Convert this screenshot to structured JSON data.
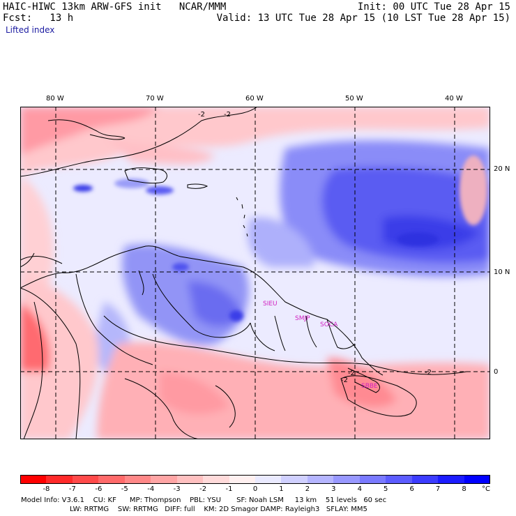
{
  "header": {
    "line1_left": "HAIC-HIWC 13km ARW-GFS init   NCAR/MMM",
    "line1_right": "Init: 00 UTC Tue 28 Apr 15",
    "line2_left": "Fcst:   13 h",
    "line2_right": "Valid: 13 UTC Tue 28 Apr 15 (10 LST Tue 28 Apr 15)",
    "field": "Lifted index"
  },
  "map": {
    "lon_ticks": [
      "80 W",
      "70 W",
      "60 W",
      "50 W",
      "40 W"
    ],
    "lat_ticks": [
      "20 N",
      "10 N",
      "0"
    ],
    "contour_labels": [
      "-2",
      "-2",
      "-2",
      "-2",
      "-2"
    ],
    "sites": [
      "SIEU",
      "SMJP",
      "SOCA",
      "SBBE"
    ]
  },
  "legend": {
    "labels": [
      "-8",
      "-7",
      "-6",
      "-5",
      "-4",
      "-3",
      "-2",
      "-1",
      "0",
      "1",
      "2",
      "3",
      "4",
      "5",
      "6",
      "7",
      "8"
    ],
    "unit": "°C",
    "colors": [
      "#ff0000",
      "#ff2a2a",
      "#ff4a4a",
      "#ff6a6a",
      "#ff8888",
      "#ffa5a5",
      "#ffc0c0",
      "#ffdada",
      "#fff0f0",
      "#eaeaff",
      "#d0d0ff",
      "#b5b5ff",
      "#9898ff",
      "#7a7aff",
      "#5c5cff",
      "#3c3cff",
      "#1c1cff",
      "#0000ff"
    ]
  },
  "model_info": {
    "line1": "Model Info: V3.6.1    CU: KF      MP: Thompson    PBL: YSU       SF: Noah LSM     13 km    51 levels   60 sec",
    "line2": "LW: RRTMG    SW: RRTMG   DIFF: full    KM: 2D Smagor DAMP: Rayleigh3   SFLAY: MM5"
  }
}
